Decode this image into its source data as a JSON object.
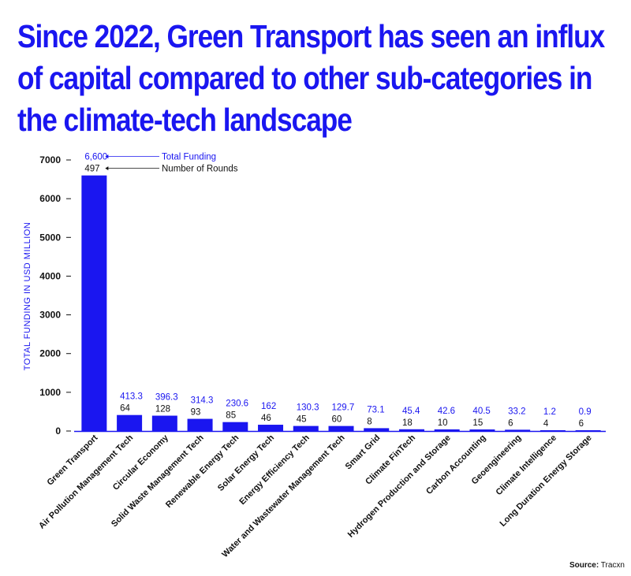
{
  "title_lines": [
    "Since 2022, Green Transport has seen an influx",
    "of capital compared to other sub-categories in",
    "the climate-tech landscape"
  ],
  "source_label": "Source:",
  "source_value": "Tracxn",
  "colors": {
    "accent": "#1a16f0",
    "text": "#111111"
  },
  "chart_data": {
    "type": "bar",
    "ylabel": "TOTAL FUNDING IN USD MILLION",
    "ylim": [
      0,
      7000
    ],
    "yticks": [
      0,
      1000,
      2000,
      3000,
      4000,
      5000,
      6000,
      7000
    ],
    "grid": false,
    "categories": [
      "Green Transport",
      "Air Pollution Management Tech",
      "Circular Economy",
      "Solid Waste Management Tech",
      "Renewable Energy Tech",
      "Solar Energy Tech",
      "Energy Efficiency Tech",
      "Water and Wastewater Management Tech",
      "Smart Grid",
      "Climate FinTech",
      "Hydrogen Production and Storage",
      "Carbon Accounting",
      "Geoengineering",
      "Climate Intelligence",
      "Long Duration Energy Storage"
    ],
    "series": [
      {
        "name": "Total Funding",
        "values": [
          6600,
          413.3,
          396.3,
          314.3,
          230.6,
          162,
          130.3,
          129.7,
          73.1,
          45.4,
          42.6,
          40.5,
          33.2,
          1.2,
          0.9
        ],
        "labels": [
          "6,600",
          "413.3",
          "396.3",
          "314.3",
          "230.6",
          "162",
          "130.3",
          "129.7",
          "73.1",
          "45.4",
          "42.6",
          "40.5",
          "33.2",
          "1.2",
          "0.9"
        ]
      },
      {
        "name": "Number of Rounds",
        "values": [
          497,
          64,
          128,
          93,
          85,
          46,
          45,
          60,
          8,
          18,
          10,
          15,
          6,
          4,
          6
        ],
        "labels": [
          "497",
          "64",
          "128",
          "93",
          "85",
          "46",
          "45",
          "60",
          "8",
          "18",
          "10",
          "15",
          "6",
          "4",
          "6"
        ]
      }
    ],
    "annotations": [
      "Total Funding",
      "Number of Rounds"
    ]
  }
}
